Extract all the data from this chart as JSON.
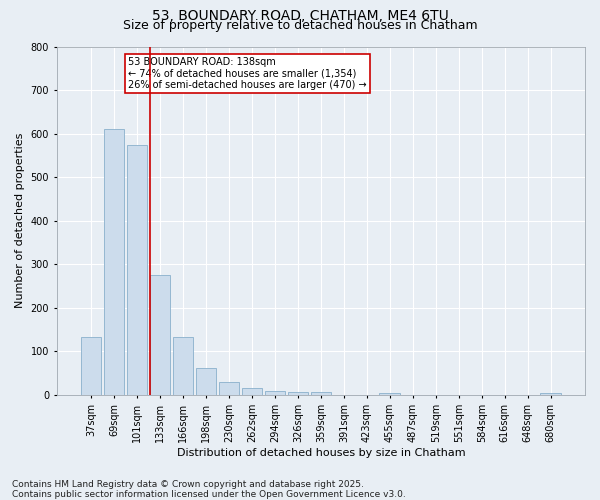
{
  "title_line1": "53, BOUNDARY ROAD, CHATHAM, ME4 6TU",
  "title_line2": "Size of property relative to detached houses in Chatham",
  "xlabel": "Distribution of detached houses by size in Chatham",
  "ylabel": "Number of detached properties",
  "categories": [
    "37sqm",
    "69sqm",
    "101sqm",
    "133sqm",
    "166sqm",
    "198sqm",
    "230sqm",
    "262sqm",
    "294sqm",
    "326sqm",
    "359sqm",
    "391sqm",
    "423sqm",
    "455sqm",
    "487sqm",
    "519sqm",
    "551sqm",
    "584sqm",
    "616sqm",
    "648sqm",
    "680sqm"
  ],
  "values": [
    133,
    610,
    573,
    275,
    133,
    62,
    29,
    16,
    9,
    7,
    6,
    0,
    0,
    4,
    0,
    0,
    0,
    0,
    0,
    0,
    5
  ],
  "bar_color": "#ccdcec",
  "bar_edge_color": "#8ab0cc",
  "vline_color": "#cc0000",
  "vline_position": 2.57,
  "annotation_text": "53 BOUNDARY ROAD: 138sqm\n← 74% of detached houses are smaller (1,354)\n26% of semi-detached houses are larger (470) →",
  "annotation_box_facecolor": "#ffffff",
  "annotation_box_edgecolor": "#cc0000",
  "ylim": [
    0,
    800
  ],
  "yticks": [
    0,
    100,
    200,
    300,
    400,
    500,
    600,
    700,
    800
  ],
  "footer_line1": "Contains HM Land Registry data © Crown copyright and database right 2025.",
  "footer_line2": "Contains public sector information licensed under the Open Government Licence v3.0.",
  "bg_color": "#e8eef4",
  "plot_bg_color": "#e8eef4",
  "grid_color": "#ffffff",
  "title_fontsize": 10,
  "subtitle_fontsize": 9,
  "tick_fontsize": 7,
  "ylabel_fontsize": 8,
  "xlabel_fontsize": 8,
  "annotation_fontsize": 7,
  "footer_fontsize": 6.5
}
